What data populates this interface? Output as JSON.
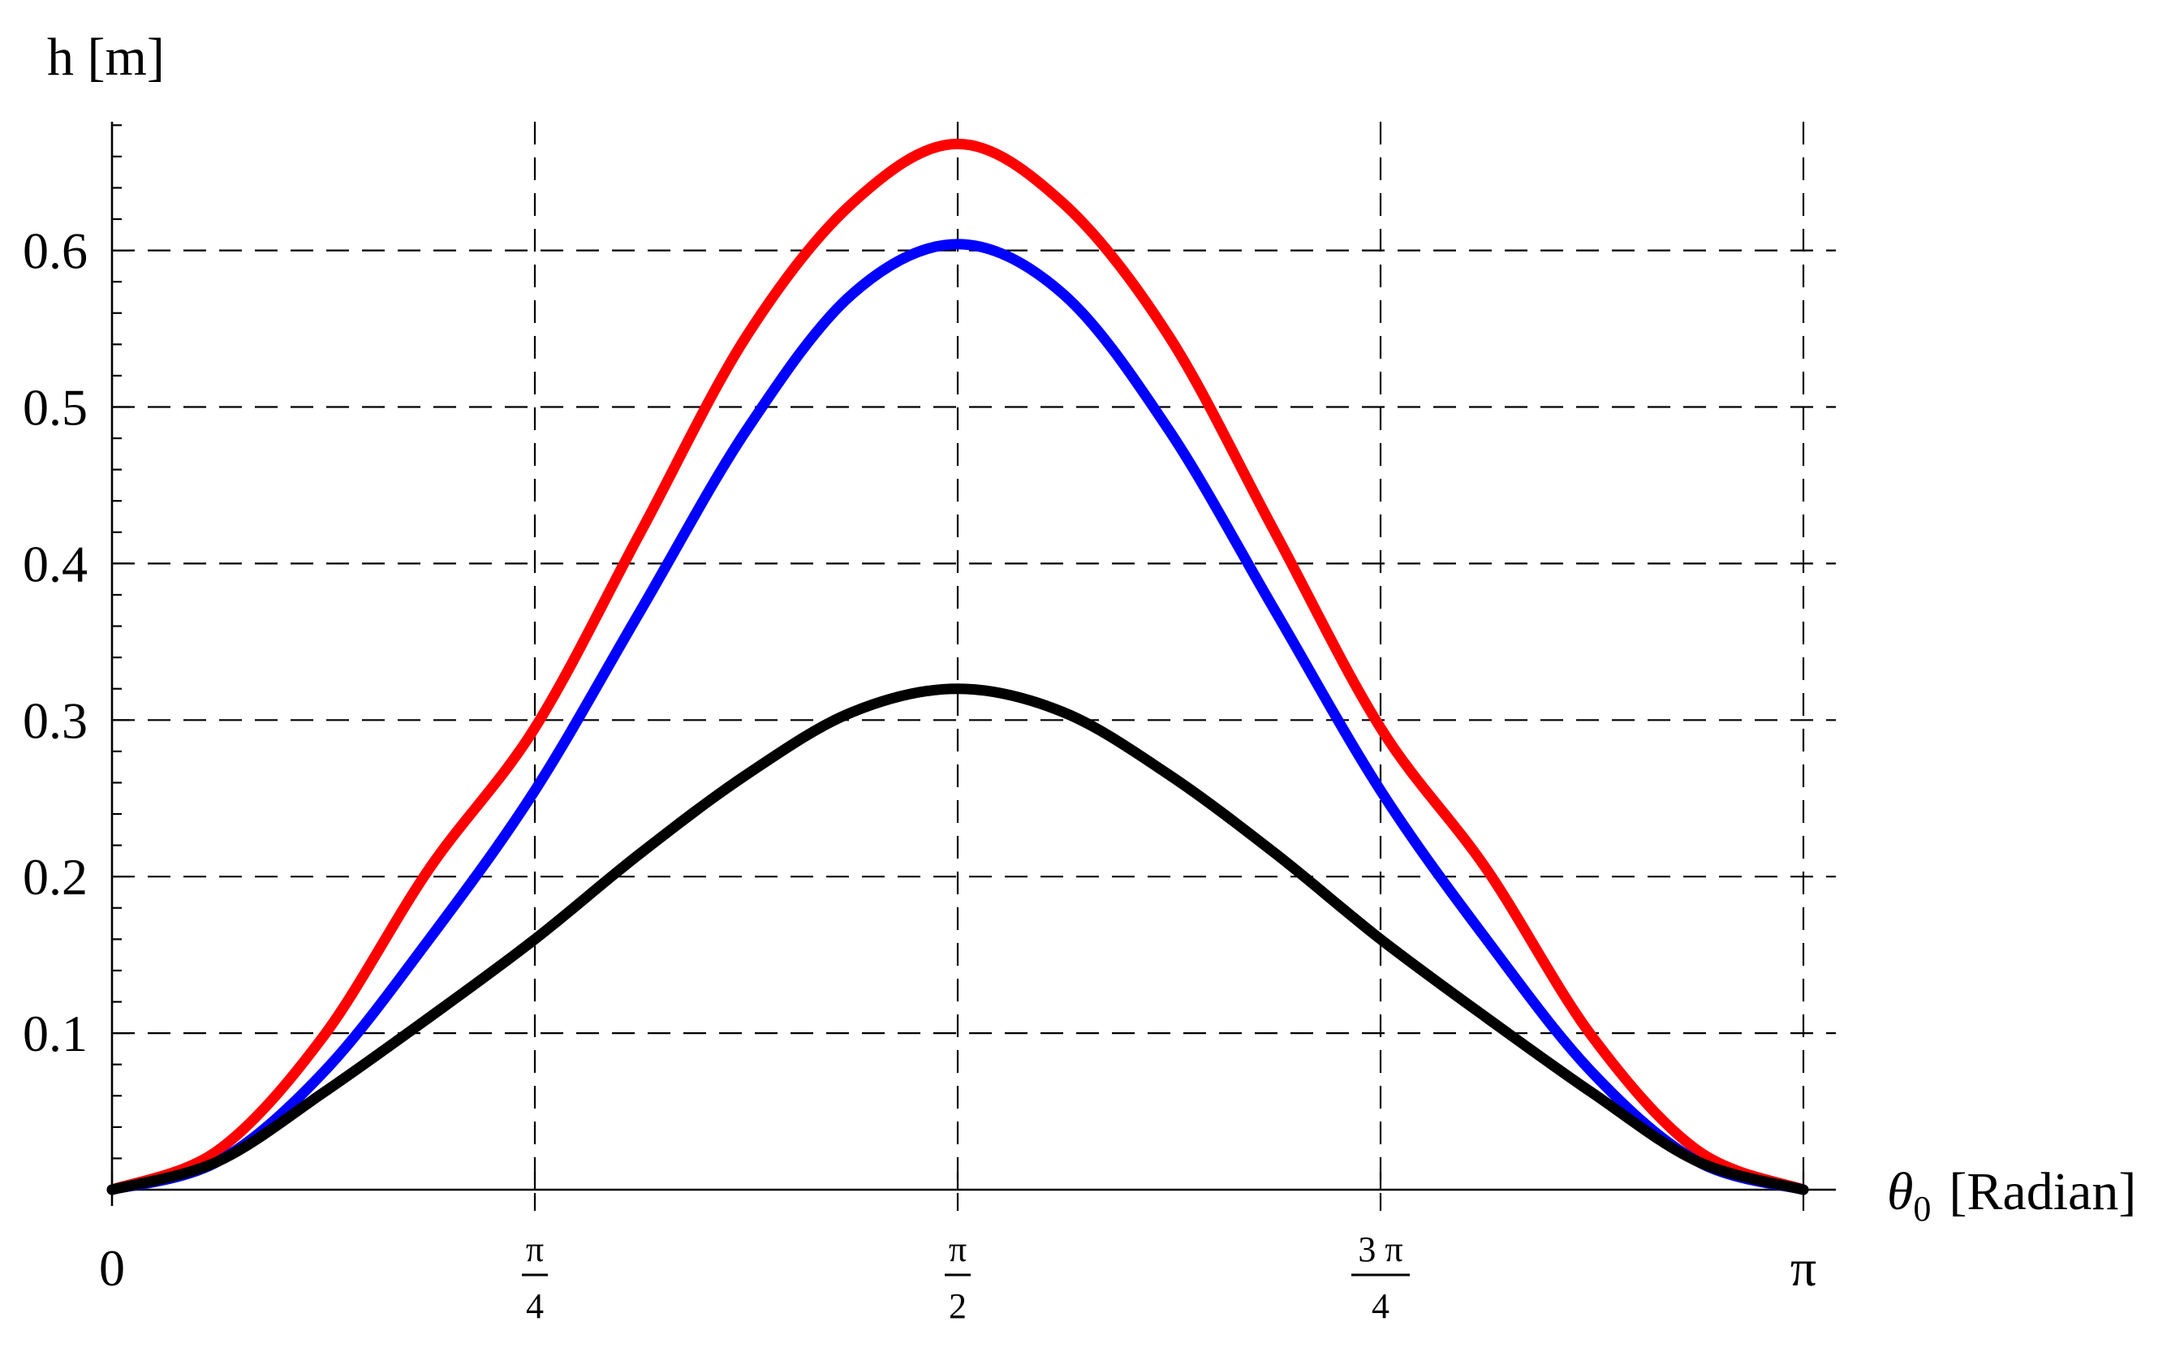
{
  "chart_data": {
    "type": "line",
    "xlabel": "θ",
    "xlabel_sub": "0",
    "xlabel_unit": "[Radian]",
    "ylabel": "h [m]",
    "xlim": [
      0,
      3.14159
    ],
    "ylim": [
      0,
      0.68
    ],
    "grid": true,
    "x_ticks": [
      {
        "value": 0,
        "label": "0"
      },
      {
        "value": 0.785398,
        "num": "π",
        "den": "4"
      },
      {
        "value": 1.570796,
        "num": "π",
        "den": "2"
      },
      {
        "value": 2.356194,
        "num": "3 π",
        "den": "4"
      },
      {
        "value": 3.141593,
        "label": "π"
      }
    ],
    "y_ticks": [
      {
        "value": 0.1,
        "label": "0.1"
      },
      {
        "value": 0.2,
        "label": "0.2"
      },
      {
        "value": 0.3,
        "label": "0.3"
      },
      {
        "value": 0.4,
        "label": "0.4"
      },
      {
        "value": 0.5,
        "label": "0.5"
      },
      {
        "value": 0.6,
        "label": "0.6"
      }
    ],
    "series": [
      {
        "color": "#ff0000",
        "x": [
          0,
          0.19635,
          0.392699,
          0.589049,
          0.785398,
          0.981748,
          1.178097,
          1.374447,
          1.570796,
          1.767146,
          1.963495,
          2.159845,
          2.356194,
          2.552544,
          2.748894,
          2.945243,
          3.141593
        ],
        "y": [
          0,
          0.025,
          0.098,
          0.205,
          0.295,
          0.42,
          0.545,
          0.63,
          0.668,
          0.63,
          0.545,
          0.42,
          0.295,
          0.205,
          0.098,
          0.025,
          0
        ]
      },
      {
        "color": "#0000ff",
        "x": [
          0,
          0.19635,
          0.392699,
          0.589049,
          0.785398,
          0.981748,
          1.178097,
          1.374447,
          1.570796,
          1.767146,
          1.963495,
          2.159845,
          2.356194,
          2.552544,
          2.748894,
          2.945243,
          3.141593
        ],
        "y": [
          0,
          0.018,
          0.075,
          0.16,
          0.255,
          0.37,
          0.485,
          0.572,
          0.604,
          0.572,
          0.485,
          0.37,
          0.255,
          0.16,
          0.075,
          0.018,
          0
        ]
      },
      {
        "color": "#000000",
        "x": [
          0,
          0.19635,
          0.392699,
          0.589049,
          0.785398,
          0.981748,
          1.178097,
          1.374447,
          1.570796,
          1.767146,
          1.963495,
          2.159845,
          2.356194,
          2.552544,
          2.748894,
          2.945243,
          3.141593
        ],
        "y": [
          0,
          0.018,
          0.062,
          0.11,
          0.16,
          0.215,
          0.265,
          0.305,
          0.32,
          0.305,
          0.265,
          0.215,
          0.16,
          0.11,
          0.062,
          0.018,
          0
        ]
      }
    ]
  }
}
